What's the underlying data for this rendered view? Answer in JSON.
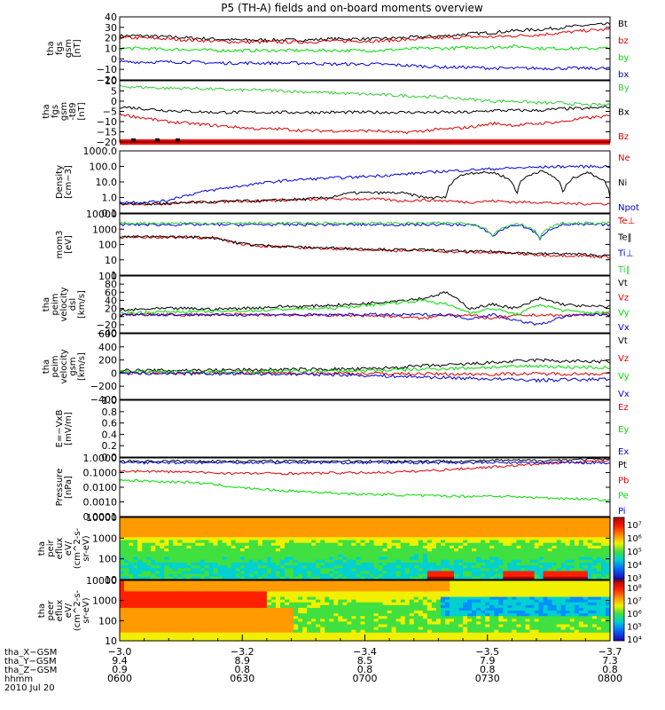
{
  "title": "P5 (TH-A) fields and on-board moments overview",
  "date_label": "2010 Jul 20",
  "colors": {
    "black": "#000000",
    "red": "#e00000",
    "green": "#00dd00",
    "blue": "#0000e0",
    "lgreen": "#33cc33"
  },
  "chart_data": [
    {
      "type": "line",
      "ylabel": [
        "tha",
        "fgs",
        "gsm",
        "[nT]"
      ],
      "ylim": [
        -20,
        40
      ],
      "yticks": [
        "40",
        "30",
        "20",
        "10",
        "0",
        "−10",
        "−20"
      ],
      "series": [
        {
          "name": "Bt",
          "color": "black",
          "values": [
            22,
            22,
            21,
            20,
            19,
            18,
            18,
            18,
            18,
            19,
            19,
            19,
            20,
            21,
            22,
            24,
            25,
            27,
            28,
            30,
            32,
            33
          ]
        },
        {
          "name": "bz",
          "color": "red",
          "values": [
            20,
            20,
            19,
            18,
            17,
            16,
            16,
            16,
            16,
            17,
            17,
            17,
            18,
            19,
            20,
            21,
            21,
            22,
            23,
            25,
            27,
            28
          ]
        },
        {
          "name": "by",
          "color": "green",
          "values": [
            10,
            10,
            9,
            9,
            8,
            8,
            8,
            8,
            8,
            8,
            8,
            8,
            9,
            10,
            10,
            11,
            11,
            12,
            10,
            10,
            10,
            10
          ]
        },
        {
          "name": "bx",
          "color": "blue",
          "values": [
            -3,
            -3,
            -3,
            -3,
            -4,
            -4,
            -4,
            -4,
            -4,
            -5,
            -5,
            -5,
            -6,
            -7,
            -8,
            -8,
            -9,
            -9,
            -9,
            -9,
            -9,
            -9
          ]
        }
      ]
    },
    {
      "type": "line",
      "ylabel": [
        "tha",
        "fgs",
        "gsm",
        "-t89",
        "[nT]"
      ],
      "ylim": [
        -23,
        10
      ],
      "yticks": [
        "10",
        "5",
        "0",
        "−5",
        "−10",
        "−15",
        "−20"
      ],
      "series": [
        {
          "name": "By",
          "color": "lgreen",
          "values": [
            7,
            6.5,
            6,
            6,
            5.5,
            5,
            5,
            4.5,
            4,
            3.5,
            3,
            2.5,
            2,
            1.5,
            1,
            0,
            -1,
            -1,
            -2,
            -2,
            -3,
            -3
          ]
        },
        {
          "name": "Bx",
          "color": "black",
          "values": [
            -4,
            -5,
            -6,
            -6.5,
            -7,
            -7,
            -7,
            -7,
            -7,
            -7,
            -7,
            -7,
            -7,
            -7,
            -7,
            -7,
            -6,
            -6,
            -6,
            -5,
            -5,
            -4
          ]
        },
        {
          "name": "Bz",
          "color": "red",
          "values": [
            -8,
            -10,
            -12,
            -13,
            -14,
            -15,
            -16,
            -16,
            -17,
            -17,
            -17,
            -17,
            -18,
            -17,
            -16,
            -15,
            -13,
            -14,
            -13,
            -12,
            -10,
            -9
          ]
        }
      ]
    },
    {
      "type": "line",
      "ylabel": [
        "Density",
        "[cm−3]"
      ],
      "ylim": [
        0.1,
        1000
      ],
      "yscale": "log",
      "yticks": [
        "1000.0",
        "100.0",
        "10.0",
        "1.0",
        "0.1"
      ],
      "series": [
        {
          "name": "Ne",
          "color": "red",
          "values": [
            0.4,
            0.4,
            0.4,
            0.5,
            0.5,
            0.6,
            0.6,
            0.7,
            0.7,
            0.8,
            0.8,
            0.8,
            0.6,
            0.7,
            0.6,
            0.5,
            0.6,
            0.5,
            0.5,
            0.4,
            0.4,
            0.4
          ]
        },
        {
          "name": "Ni",
          "color": "black",
          "values": [
            0.4,
            0.4,
            0.4,
            0.5,
            0.5,
            0.6,
            0.6,
            0.7,
            0.8,
            1,
            2,
            2,
            2,
            1,
            1,
            40,
            40,
            1,
            50,
            1,
            40,
            1
          ]
        },
        {
          "name": "Npot",
          "color": "blue",
          "values": [
            0.5,
            0.5,
            0.6,
            1.5,
            3,
            5,
            8,
            12,
            15,
            18,
            20,
            25,
            30,
            40,
            50,
            60,
            70,
            80,
            90,
            100,
            100,
            100
          ]
        }
      ]
    },
    {
      "type": "line",
      "ylabel": [
        "mom3",
        "[eV]"
      ],
      "ylim": [
        1,
        10000
      ],
      "yscale": "log",
      "yticks": [
        "10000",
        "1000",
        "100",
        "10",
        "1"
      ],
      "series": [
        {
          "name": "Te⊥",
          "color": "red",
          "values": [
            300,
            300,
            300,
            300,
            260,
            120,
            80,
            70,
            60,
            55,
            50,
            45,
            40,
            40,
            35,
            30,
            30,
            25,
            20,
            20,
            18,
            15
          ]
        },
        {
          "name": "Te‖",
          "color": "black",
          "values": [
            320,
            320,
            320,
            320,
            280,
            130,
            90,
            75,
            65,
            60,
            55,
            50,
            45,
            45,
            40,
            35,
            35,
            30,
            25,
            25,
            22,
            18
          ]
        },
        {
          "name": "Ti⊥",
          "color": "blue",
          "values": [
            2000,
            2000,
            2000,
            2000,
            2000,
            2000,
            2000,
            2000,
            2000,
            2000,
            2000,
            2000,
            2000,
            2000,
            2000,
            2000,
            300,
            2000,
            200,
            2000,
            2000,
            2000
          ]
        },
        {
          "name": "Ti‖",
          "color": "lgreen",
          "values": [
            2500,
            2500,
            2500,
            2500,
            2500,
            2500,
            2500,
            2500,
            2500,
            2500,
            2500,
            2500,
            2500,
            2500,
            2500,
            2500,
            350,
            2500,
            250,
            2500,
            2500,
            2500
          ]
        }
      ]
    },
    {
      "type": "line",
      "ylabel": [
        "tha",
        "peim",
        "velocity",
        "dsl",
        "[km/s]"
      ],
      "ylim": [
        -40,
        100
      ],
      "yticks": [
        "100",
        "80",
        "60",
        "40",
        "20",
        "0",
        "−20",
        "−40"
      ],
      "series": [
        {
          "name": "Vt",
          "color": "black",
          "values": [
            15,
            18,
            20,
            20,
            18,
            20,
            22,
            25,
            25,
            28,
            30,
            35,
            40,
            45,
            60,
            20,
            30,
            20,
            45,
            30,
            25,
            25
          ]
        },
        {
          "name": "Vz",
          "color": "red",
          "values": [
            5,
            5,
            4,
            4,
            5,
            5,
            4,
            4,
            3,
            3,
            3,
            2,
            0,
            -5,
            5,
            3,
            -5,
            2,
            4,
            2,
            5,
            5
          ]
        },
        {
          "name": "Vy",
          "color": "green",
          "values": [
            10,
            10,
            12,
            12,
            12,
            14,
            15,
            18,
            20,
            20,
            25,
            30,
            35,
            40,
            30,
            10,
            20,
            5,
            30,
            15,
            10,
            10
          ]
        },
        {
          "name": "Vx",
          "color": "blue",
          "values": [
            5,
            5,
            5,
            5,
            4,
            4,
            5,
            5,
            4,
            4,
            5,
            5,
            4,
            5,
            5,
            -5,
            5,
            -10,
            -20,
            0,
            5,
            5
          ]
        }
      ]
    },
    {
      "type": "line",
      "ylabel": [
        "tha",
        "peim",
        "velocity",
        "gsm",
        "[km/s]"
      ],
      "ylim": [
        -400,
        600
      ],
      "yticks": [
        "600",
        "400",
        "200",
        "0",
        "−200",
        "−400"
      ],
      "series": [
        {
          "name": "Vt",
          "color": "black",
          "values": [
            40,
            40,
            40,
            45,
            45,
            50,
            50,
            55,
            55,
            60,
            60,
            70,
            90,
            110,
            120,
            140,
            160,
            180,
            200,
            180,
            180,
            170
          ]
        },
        {
          "name": "Vz",
          "color": "red",
          "values": [
            0,
            0,
            0,
            0,
            0,
            0,
            0,
            0,
            0,
            0,
            -5,
            -5,
            -10,
            -10,
            -15,
            -15,
            -15,
            -10,
            -10,
            -10,
            -10,
            -10
          ]
        },
        {
          "name": "Vy",
          "color": "green",
          "values": [
            20,
            20,
            20,
            20,
            20,
            25,
            25,
            30,
            30,
            30,
            35,
            40,
            50,
            60,
            70,
            80,
            90,
            100,
            110,
            90,
            90,
            80
          ]
        },
        {
          "name": "Vx",
          "color": "blue",
          "values": [
            -5,
            -5,
            -5,
            -10,
            -10,
            -10,
            -10,
            -15,
            -20,
            -20,
            -30,
            -40,
            -50,
            -60,
            -70,
            -80,
            -90,
            -100,
            -110,
            -100,
            -100,
            -90
          ]
        }
      ]
    },
    {
      "type": "line",
      "ylabel": [
        "E=−VxB",
        "[mV/m]"
      ],
      "ylim": [
        0,
        1
      ],
      "yticks": [
        "1.0",
        "0.8",
        "0.6",
        "0.4",
        "0.2",
        "0.0"
      ],
      "series": [
        {
          "name": "Ez",
          "color": "red",
          "values": []
        },
        {
          "name": "Ey",
          "color": "green",
          "values": []
        },
        {
          "name": "Ex",
          "color": "blue",
          "values": []
        }
      ]
    },
    {
      "type": "line",
      "ylabel": [
        "Pressure",
        "[nPa]"
      ],
      "ylim": [
        0.0001,
        1.5
      ],
      "yscale": "log",
      "yticks": [
        "1.0000",
        "0.1000",
        "0.0100",
        "0.0010",
        "0.0001"
      ],
      "series": [
        {
          "name": "Pt",
          "color": "black",
          "values": [
            0.9,
            0.9,
            0.9,
            0.9,
            0.9,
            0.9,
            0.9,
            0.9,
            0.9,
            0.9,
            0.9,
            0.9,
            0.9,
            0.9,
            0.9,
            0.9,
            1,
            1,
            1,
            1.1,
            1.2,
            1.2
          ]
        },
        {
          "name": "Pb",
          "color": "red",
          "values": [
            0.18,
            0.17,
            0.16,
            0.15,
            0.13,
            0.12,
            0.12,
            0.12,
            0.12,
            0.13,
            0.13,
            0.14,
            0.15,
            0.18,
            0.22,
            0.28,
            0.35,
            0.45,
            0.55,
            0.7,
            0.85,
            1
          ]
        },
        {
          "name": "Pe",
          "color": "green",
          "values": [
            0.04,
            0.035,
            0.03,
            0.028,
            0.02,
            0.012,
            0.009,
            0.007,
            0.006,
            0.005,
            0.004,
            0.0038,
            0.0035,
            0.003,
            0.003,
            0.0028,
            0.003,
            0.0025,
            0.0022,
            0.002,
            0.0018,
            0.0015
          ]
        },
        {
          "name": "Pi",
          "color": "blue",
          "values": [
            0.7,
            0.7,
            0.7,
            0.7,
            0.7,
            0.7,
            0.7,
            0.7,
            0.7,
            0.7,
            0.7,
            0.7,
            0.7,
            0.7,
            0.7,
            0.7,
            0.7,
            0.7,
            0.7,
            0.7,
            0.7,
            0.7
          ]
        }
      ]
    },
    {
      "type": "heatmap",
      "ylabel": [
        "tha",
        "peir",
        "eflux",
        "eV/",
        "(cm^2-s-",
        "sr-eV)"
      ],
      "ylim": [
        5,
        30000
      ],
      "yscale": "log",
      "yticks": [
        "10000",
        "1000",
        "100",
        "10"
      ],
      "cbar": [
        "10⁷",
        "10⁶",
        "10⁵",
        "10⁴",
        "10³"
      ]
    },
    {
      "type": "heatmap",
      "ylabel": [
        "tha",
        "peer",
        "eflux",
        "eV/",
        "(cm^2-s-",
        "sr-eV)"
      ],
      "ylim": [
        7,
        30000
      ],
      "yscale": "log",
      "yticks": [
        "10000",
        "1000",
        "100",
        "10"
      ],
      "cbar": [
        "10⁸",
        "10⁷",
        "10⁶",
        "10⁵",
        "10⁴"
      ]
    }
  ],
  "xaxis": {
    "ticks": [
      {
        "x_gsm": "−3.0",
        "y_gsm": "9.4",
        "z_gsm": "0.9",
        "hhmm": "0600"
      },
      {
        "x_gsm": "−3.2",
        "y_gsm": "8.9",
        "z_gsm": "0.8",
        "hhmm": "0630"
      },
      {
        "x_gsm": "−3.4",
        "y_gsm": "8.5",
        "z_gsm": "0.8",
        "hhmm": "0700"
      },
      {
        "x_gsm": "−3.5",
        "y_gsm": "7.9",
        "z_gsm": "0.8",
        "hhmm": "0730"
      },
      {
        "x_gsm": "−3.7",
        "y_gsm": "7.3",
        "z_gsm": "0.8",
        "hhmm": "0800"
      }
    ],
    "row_labels": [
      "tha_X−GSM",
      "tha_Y−GSM",
      "tha_Z−GSM",
      "hhmm"
    ]
  }
}
